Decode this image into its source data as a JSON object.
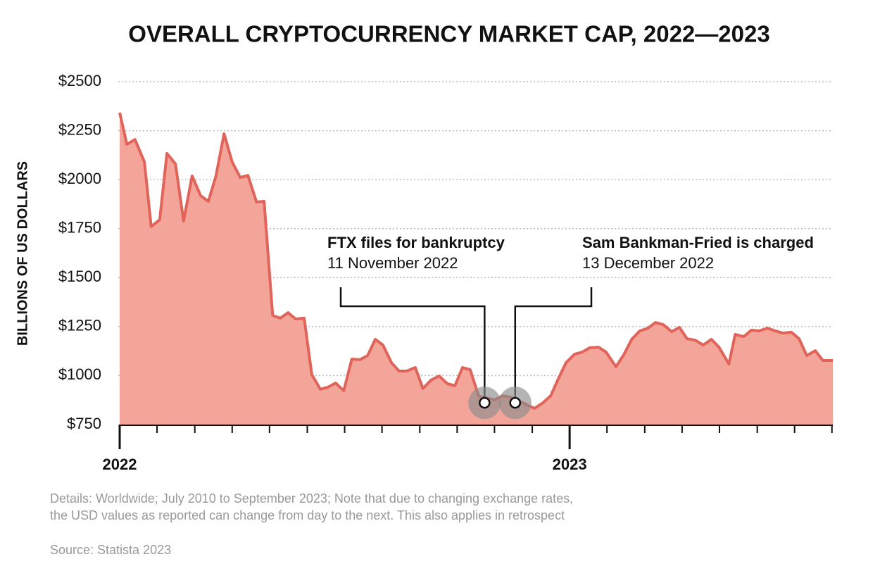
{
  "chart_data": {
    "type": "area",
    "title": "OVERALL CRYPTOCURRENCY MARKET CAP, 2022—2023",
    "y_label": "BILLIONS OF US DOLLARS",
    "x": [
      2022.0,
      2022.016,
      2022.034,
      2022.055,
      2022.07,
      2022.089,
      2022.105,
      2022.124,
      2022.142,
      2022.161,
      2022.18,
      2022.197,
      2022.214,
      2022.232,
      2022.25,
      2022.268,
      2022.285,
      2022.304,
      2022.321,
      2022.34,
      2022.357,
      2022.374,
      2022.391,
      2022.41,
      2022.427,
      2022.446,
      2022.463,
      2022.48,
      2022.498,
      2022.516,
      2022.534,
      2022.551,
      2022.568,
      2022.585,
      2022.604,
      2022.621,
      2022.638,
      2022.657,
      2022.674,
      2022.692,
      2022.71,
      2022.728,
      2022.745,
      2022.762,
      2022.779,
      2022.798,
      2022.815,
      2022.833,
      2022.851,
      2022.869,
      2022.886,
      2022.905,
      2022.922,
      2022.939,
      2022.958,
      2022.975,
      2022.992,
      2023.011,
      2023.028,
      2023.045,
      2023.064,
      2023.081,
      2023.103,
      2023.121,
      2023.138,
      2023.156,
      2023.174,
      2023.191,
      2023.208,
      2023.227,
      2023.244,
      2023.261,
      2023.279,
      2023.297,
      2023.315,
      2023.332,
      2023.354,
      2023.368,
      2023.387,
      2023.404,
      2023.421,
      2023.44,
      2023.457,
      2023.474,
      2023.493,
      2023.51,
      2023.527,
      2023.546,
      2023.563,
      2023.585
    ],
    "series": [
      {
        "name": "Market cap",
        "color": "#e0645a",
        "fill": "#f4a59a",
        "values": [
          2342,
          2180,
          2205,
          2090,
          1760,
          1796,
          2134,
          2080,
          1789,
          2019,
          1918,
          1889,
          2019,
          2234,
          2090,
          2011,
          2022,
          1886,
          1889,
          1307,
          1293,
          1321,
          1289,
          1293,
          1005,
          930,
          941,
          962,
          923,
          1084,
          1081,
          1102,
          1185,
          1156,
          1066,
          1023,
          1023,
          1041,
          934,
          977,
          998,
          959,
          948,
          1041,
          1030,
          894,
          887,
          876,
          897,
          890,
          872,
          851,
          833,
          858,
          897,
          984,
          1066,
          1109,
          1120,
          1142,
          1145,
          1120,
          1045,
          1109,
          1185,
          1228,
          1242,
          1271,
          1260,
          1224,
          1246,
          1188,
          1181,
          1156,
          1185,
          1145,
          1059,
          1210,
          1199,
          1232,
          1228,
          1242,
          1228,
          1217,
          1221,
          1188,
          1102,
          1127,
          1077,
          1077
        ]
      }
    ],
    "xlim": [
      2022,
      2023.585
    ],
    "xticks": [
      2022,
      2023
    ],
    "xminorticks": [
      2022.083,
      2022.167,
      2022.25,
      2022.333,
      2022.417,
      2022.5,
      2022.583,
      2022.667,
      2022.75,
      2022.833,
      2022.917,
      2023.083,
      2023.167,
      2023.25,
      2023.333,
      2023.417,
      2023.5,
      2023.583
    ],
    "ylim": [
      750,
      2500
    ],
    "yticks": [
      {
        "value": 750,
        "label": "$750"
      },
      {
        "value": 1000,
        "label": "$1000"
      },
      {
        "value": 1250,
        "label": "$1250"
      },
      {
        "value": 1500,
        "label": "$1500"
      },
      {
        "value": 1750,
        "label": "$1750"
      },
      {
        "value": 2000,
        "label": "$2000"
      },
      {
        "value": 2250,
        "label": "$2250"
      },
      {
        "value": 2500,
        "label": "$2500"
      }
    ],
    "grid": true,
    "annotations": [
      {
        "label": "FTX files for bankruptcy",
        "date": "11 November 2022",
        "x": 2022.811,
        "y": 861
      },
      {
        "label": "Sam Bankman-Fried is charged",
        "date": "13 December 2022",
        "x": 2022.879,
        "y": 861
      }
    ],
    "details": [
      "Details: Worldwide; July 2010 to September 2023; Note that due to changing exchange rates,",
      "the USD values as reported can change from day to the next. This also applies in retrospect"
    ],
    "source": "Source: Statista 2023"
  }
}
